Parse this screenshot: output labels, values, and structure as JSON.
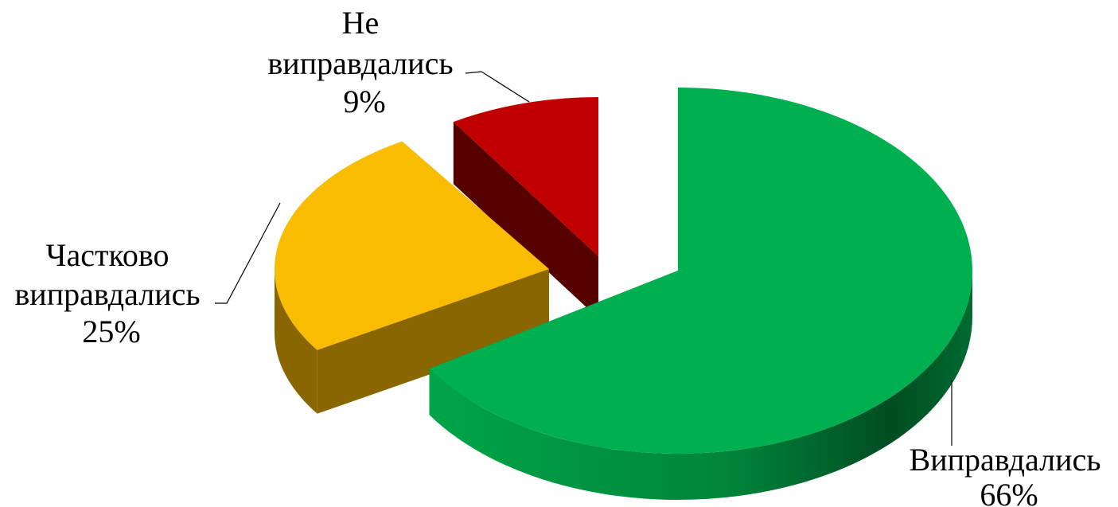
{
  "chart_data": {
    "type": "pie",
    "style": "3d-exploded",
    "slices": [
      {
        "label_lines": [
          "Виправдались"
        ],
        "percent_text": "66%",
        "value": 66,
        "color": "#00b050",
        "dark": "#00602a"
      },
      {
        "label_lines": [
          "Частково",
          "виправдались"
        ],
        "percent_text": "25%",
        "value": 25,
        "color": "#f9bc00",
        "dark": "#8a6600"
      },
      {
        "label_lines": [
          "Не",
          "виправдались"
        ],
        "percent_text": "9%",
        "value": 9,
        "color": "#c00000",
        "dark": "#560000"
      }
    ]
  }
}
